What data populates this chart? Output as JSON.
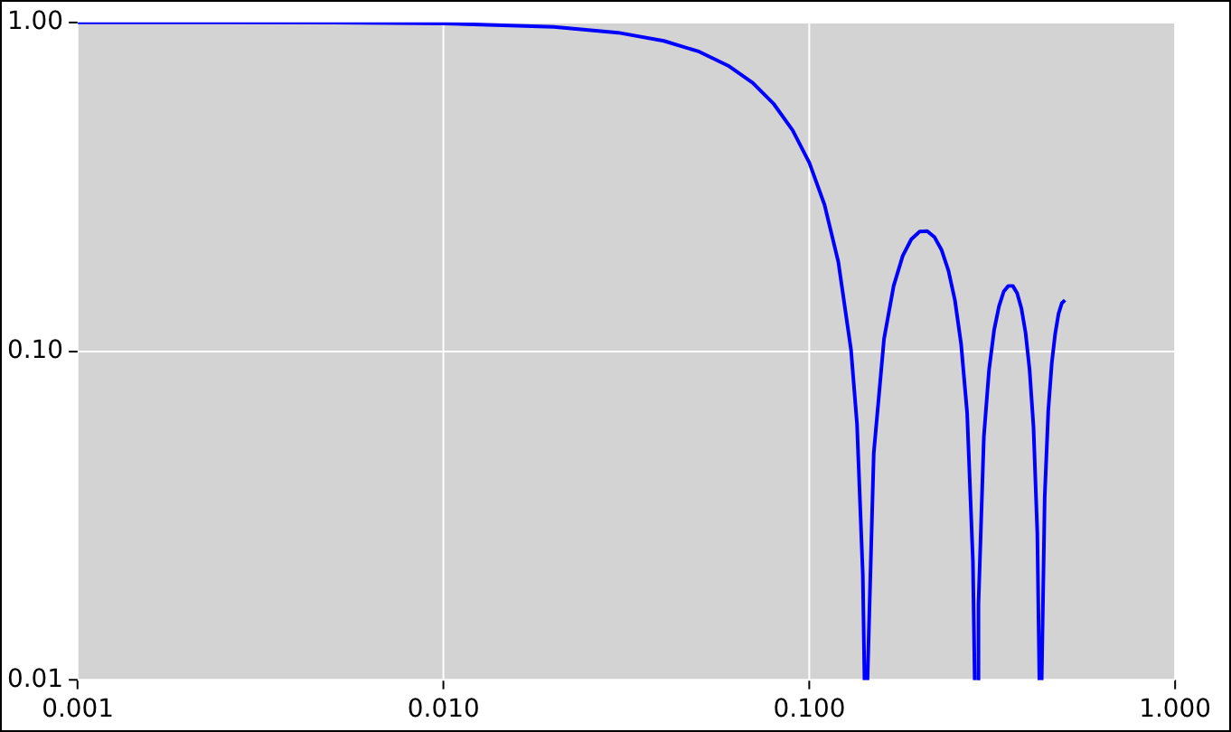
{
  "chart_data": {
    "type": "line",
    "log": "xy",
    "grid": true,
    "legend": false,
    "marker": "none",
    "line_style": "solid",
    "x": [
      0.001,
      0.002,
      0.005,
      0.01,
      0.02,
      0.03,
      0.04,
      0.05,
      0.06,
      0.07,
      0.08,
      0.09,
      0.1,
      0.11,
      0.12,
      0.13,
      0.135,
      0.14,
      0.1415,
      0.142857,
      0.1442,
      0.15,
      0.16,
      0.17,
      0.18,
      0.19,
      0.2,
      0.21,
      0.22,
      0.23,
      0.24,
      0.25,
      0.26,
      0.27,
      0.28,
      0.2832,
      0.285714,
      0.2882,
      0.29,
      0.3,
      0.31,
      0.32,
      0.33,
      0.34,
      0.35,
      0.36,
      0.37,
      0.38,
      0.39,
      0.4,
      0.41,
      0.42,
      0.4255,
      0.428571,
      0.4317,
      0.44,
      0.45,
      0.46,
      0.47,
      0.48,
      0.49,
      0.5
    ],
    "series": [
      {
        "color": "#0000ff",
        "values": [
          1.0,
          0.9997,
          0.998,
          0.992,
          0.969,
          0.93,
          0.878,
          0.814,
          0.738,
          0.655,
          0.564,
          0.47,
          0.374,
          0.279,
          0.187,
          0.101,
          0.06,
          0.021,
          0.01,
          null,
          0.01,
          0.049,
          0.109,
          0.158,
          0.195,
          0.219,
          0.231,
          0.232,
          0.222,
          0.203,
          0.176,
          0.143,
          0.105,
          0.065,
          0.023,
          0.01,
          null,
          0.01,
          0.017,
          0.055,
          0.088,
          0.116,
          0.137,
          0.152,
          0.158,
          0.158,
          0.15,
          0.135,
          0.114,
          0.088,
          0.059,
          0.028,
          0.01,
          null,
          0.01,
          0.036,
          0.066,
          0.092,
          0.113,
          0.13,
          0.14,
          0.143
        ]
      }
    ],
    "xlim": [
      0.001,
      1.0
    ],
    "xticks": [
      {
        "value": 0.001,
        "label": "0.001"
      },
      {
        "value": 0.01,
        "label": "0.010"
      },
      {
        "value": 0.1,
        "label": "0.100"
      },
      {
        "value": 1,
        "label": "1.000"
      }
    ],
    "ylim": [
      0.01,
      1.0
    ],
    "yticks": [
      {
        "value": 0.01,
        "label": "0.01"
      },
      {
        "value": 0.1,
        "label": "0.10"
      },
      {
        "value": 1,
        "label": "1.00"
      }
    ]
  }
}
